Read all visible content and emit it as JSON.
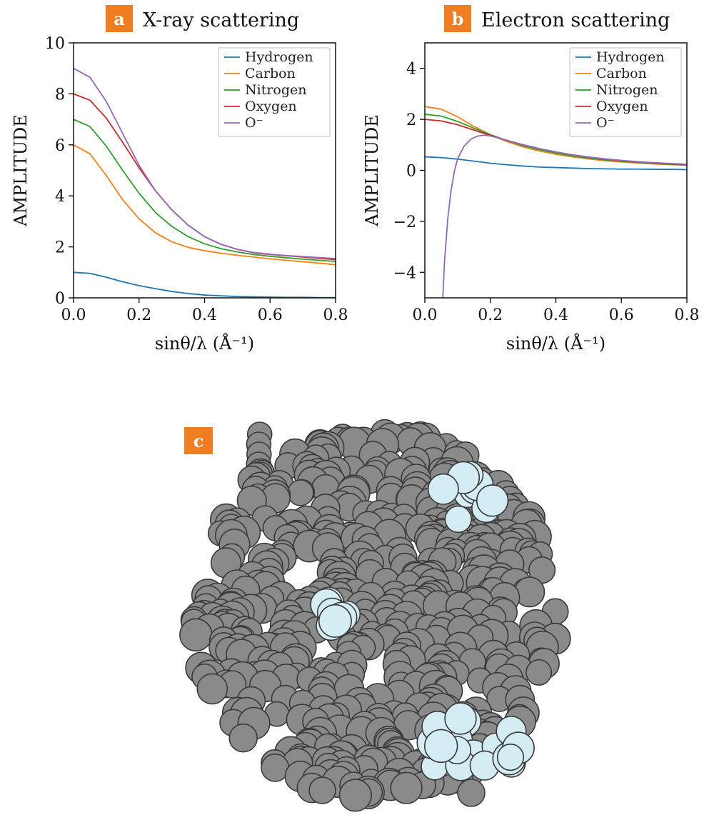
{
  "colors": {
    "Hydrogen": "#1f77b4",
    "Carbon": "#ff7f0e",
    "Nitrogen": "#2ca02c",
    "Oxygen": "#d62728",
    "O⁻": "#9467bd",
    "badge": "#f07d1f",
    "molecule_main": "#8a8a8a",
    "molecule_highlight": "#d4ecf4"
  },
  "panels": {
    "a": {
      "badge": "a",
      "title": "X-ray scattering"
    },
    "b": {
      "badge": "b",
      "title": "Electron scattering"
    },
    "c": {
      "badge": "c"
    }
  },
  "chart_data": [
    {
      "id": "a",
      "type": "line",
      "title": "X-ray scattering",
      "xlabel": "sinθ/λ  (Å⁻¹)",
      "ylabel": "AMPLITUDE",
      "xlim": [
        0,
        0.8
      ],
      "ylim": [
        0,
        10
      ],
      "xticks": [
        "0.0",
        "0.2",
        "0.4",
        "0.6",
        "0.8"
      ],
      "yticks": [
        "0",
        "2",
        "4",
        "6",
        "8",
        "10"
      ],
      "legend_position": "top-right",
      "grid": false,
      "x": [
        0.0,
        0.05,
        0.1,
        0.15,
        0.2,
        0.25,
        0.3,
        0.35,
        0.4,
        0.45,
        0.5,
        0.55,
        0.6,
        0.65,
        0.7,
        0.75,
        0.8
      ],
      "series": [
        {
          "name": "Hydrogen",
          "values": [
            1.0,
            0.96,
            0.81,
            0.63,
            0.48,
            0.36,
            0.25,
            0.17,
            0.11,
            0.08,
            0.05,
            0.04,
            0.03,
            0.02,
            0.02,
            0.01,
            0.01
          ]
        },
        {
          "name": "Carbon",
          "values": [
            6.0,
            5.65,
            4.8,
            3.85,
            3.1,
            2.55,
            2.2,
            1.98,
            1.85,
            1.75,
            1.67,
            1.6,
            1.53,
            1.47,
            1.42,
            1.36,
            1.3
          ]
        },
        {
          "name": "Nitrogen",
          "values": [
            7.0,
            6.72,
            5.95,
            5.0,
            4.1,
            3.35,
            2.8,
            2.4,
            2.12,
            1.93,
            1.8,
            1.7,
            1.63,
            1.57,
            1.52,
            1.47,
            1.43
          ]
        },
        {
          "name": "Oxygen",
          "values": [
            8.0,
            7.75,
            7.05,
            6.1,
            5.1,
            4.2,
            3.45,
            2.85,
            2.4,
            2.1,
            1.9,
            1.77,
            1.7,
            1.65,
            1.6,
            1.55,
            1.5
          ]
        },
        {
          "name": "O⁻",
          "values": [
            9.0,
            8.65,
            7.7,
            6.45,
            5.2,
            4.2,
            3.45,
            2.85,
            2.4,
            2.1,
            1.9,
            1.78,
            1.71,
            1.66,
            1.62,
            1.58,
            1.54
          ]
        }
      ]
    },
    {
      "id": "b",
      "type": "line",
      "title": "Electron scattering",
      "xlabel": "sinθ/λ  (Å⁻¹)",
      "ylabel": "AMPLITUDE",
      "xlim": [
        0,
        0.8
      ],
      "ylim": [
        -5,
        5
      ],
      "xticks": [
        "0.0",
        "0.2",
        "0.4",
        "0.6",
        "0.8"
      ],
      "yticks": [
        "−4",
        "−2",
        "0",
        "2",
        "4"
      ],
      "legend_position": "top-right",
      "grid": false,
      "x": [
        0.0,
        0.05,
        0.1,
        0.15,
        0.2,
        0.25,
        0.3,
        0.35,
        0.4,
        0.45,
        0.5,
        0.55,
        0.6,
        0.65,
        0.7,
        0.75,
        0.8
      ],
      "series": [
        {
          "name": "Hydrogen",
          "values": [
            0.53,
            0.5,
            0.44,
            0.36,
            0.28,
            0.22,
            0.17,
            0.13,
            0.11,
            0.09,
            0.07,
            0.06,
            0.05,
            0.05,
            0.04,
            0.04,
            0.03
          ]
        },
        {
          "name": "Carbon",
          "values": [
            2.5,
            2.4,
            2.1,
            1.72,
            1.4,
            1.13,
            0.92,
            0.76,
            0.63,
            0.53,
            0.45,
            0.38,
            0.33,
            0.29,
            0.25,
            0.22,
            0.2
          ]
        },
        {
          "name": "Nitrogen",
          "values": [
            2.2,
            2.13,
            1.92,
            1.65,
            1.4,
            1.17,
            0.97,
            0.81,
            0.68,
            0.57,
            0.48,
            0.41,
            0.36,
            0.31,
            0.27,
            0.24,
            0.21
          ]
        },
        {
          "name": "Oxygen",
          "values": [
            2.0,
            1.94,
            1.79,
            1.58,
            1.37,
            1.18,
            1.0,
            0.85,
            0.72,
            0.61,
            0.52,
            0.44,
            0.38,
            0.33,
            0.29,
            0.26,
            0.23
          ]
        },
        {
          "name": "O⁻",
          "x": [
            0.055,
            0.06,
            0.07,
            0.08,
            0.09,
            0.1,
            0.12,
            0.14,
            0.16,
            0.18,
            0.2,
            0.25,
            0.3,
            0.35,
            0.4,
            0.45,
            0.5,
            0.55,
            0.6,
            0.65,
            0.7,
            0.75,
            0.8
          ],
          "values": [
            -5.0,
            -3.6,
            -1.9,
            -0.8,
            -0.05,
            0.45,
            0.95,
            1.22,
            1.34,
            1.38,
            1.35,
            1.18,
            1.0,
            0.85,
            0.72,
            0.61,
            0.52,
            0.45,
            0.39,
            0.34,
            0.3,
            0.27,
            0.24
          ]
        }
      ]
    }
  ]
}
